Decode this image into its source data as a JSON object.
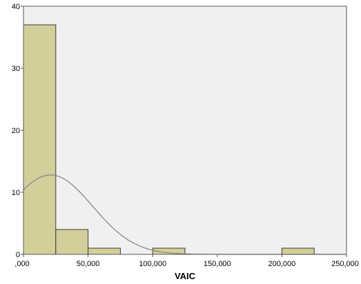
{
  "chart_data": {
    "type": "bar",
    "subtype": "histogram",
    "xlabel": "VAIC",
    "ylabel": "",
    "x_ticks": [
      ",000",
      "50,000",
      "100,000",
      "150,000",
      "200,000",
      "250,000"
    ],
    "x_tick_values": [
      0,
      50000,
      100000,
      150000,
      200000,
      250000
    ],
    "y_ticks": [
      "0",
      "10",
      "20",
      "30",
      "40"
    ],
    "y_tick_values": [
      0,
      10,
      20,
      30,
      40
    ],
    "xlim": [
      0,
      250000
    ],
    "ylim": [
      0,
      40
    ],
    "bins": [
      {
        "start": 0,
        "end": 25000,
        "count": 37
      },
      {
        "start": 25000,
        "end": 50000,
        "count": 4
      },
      {
        "start": 50000,
        "end": 75000,
        "count": 1
      },
      {
        "start": 100000,
        "end": 125000,
        "count": 1
      },
      {
        "start": 200000,
        "end": 225000,
        "count": 1
      }
    ],
    "normal_curve": {
      "mean": 21000,
      "std_dev": 32500,
      "peak": 12.8
    },
    "grid": false,
    "legend": "none",
    "colors": {
      "bar_fill": "#d3cf9a",
      "bar_stroke": "#3a3a2a",
      "plot_background": "#f0f0f0",
      "curve": "#808080",
      "frame": "#555555"
    }
  }
}
